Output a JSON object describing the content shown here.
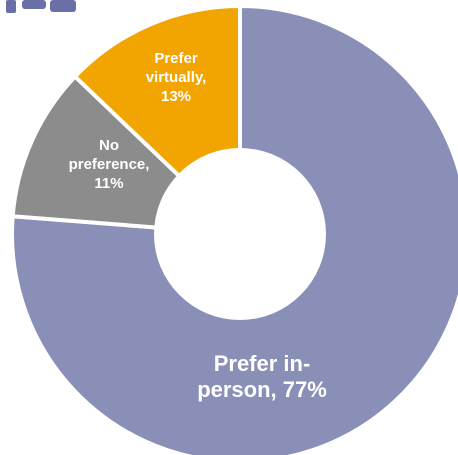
{
  "chart_data": {
    "type": "pie",
    "subtype": "donut",
    "title": "",
    "slices": [
      {
        "key": "in_person",
        "value": 77,
        "color": "#8a8fb8",
        "label_lines": [
          "Prefer in-",
          "person, 77%"
        ]
      },
      {
        "key": "no_preference",
        "value": 11,
        "color": "#8c8c8c",
        "label_lines": [
          "No",
          "preference,",
          "11%"
        ]
      },
      {
        "key": "virtually",
        "value": 13,
        "color": "#f2a400",
        "label_lines": [
          "Prefer",
          "virtually,",
          "13%"
        ]
      }
    ],
    "start_angle_deg": 0,
    "direction": "clockwise",
    "legend": "none",
    "label_color": "#ffffff",
    "background_color": "#ffffff",
    "separator_color": "#ffffff",
    "title_fragment_color": "#6b6fa8"
  }
}
